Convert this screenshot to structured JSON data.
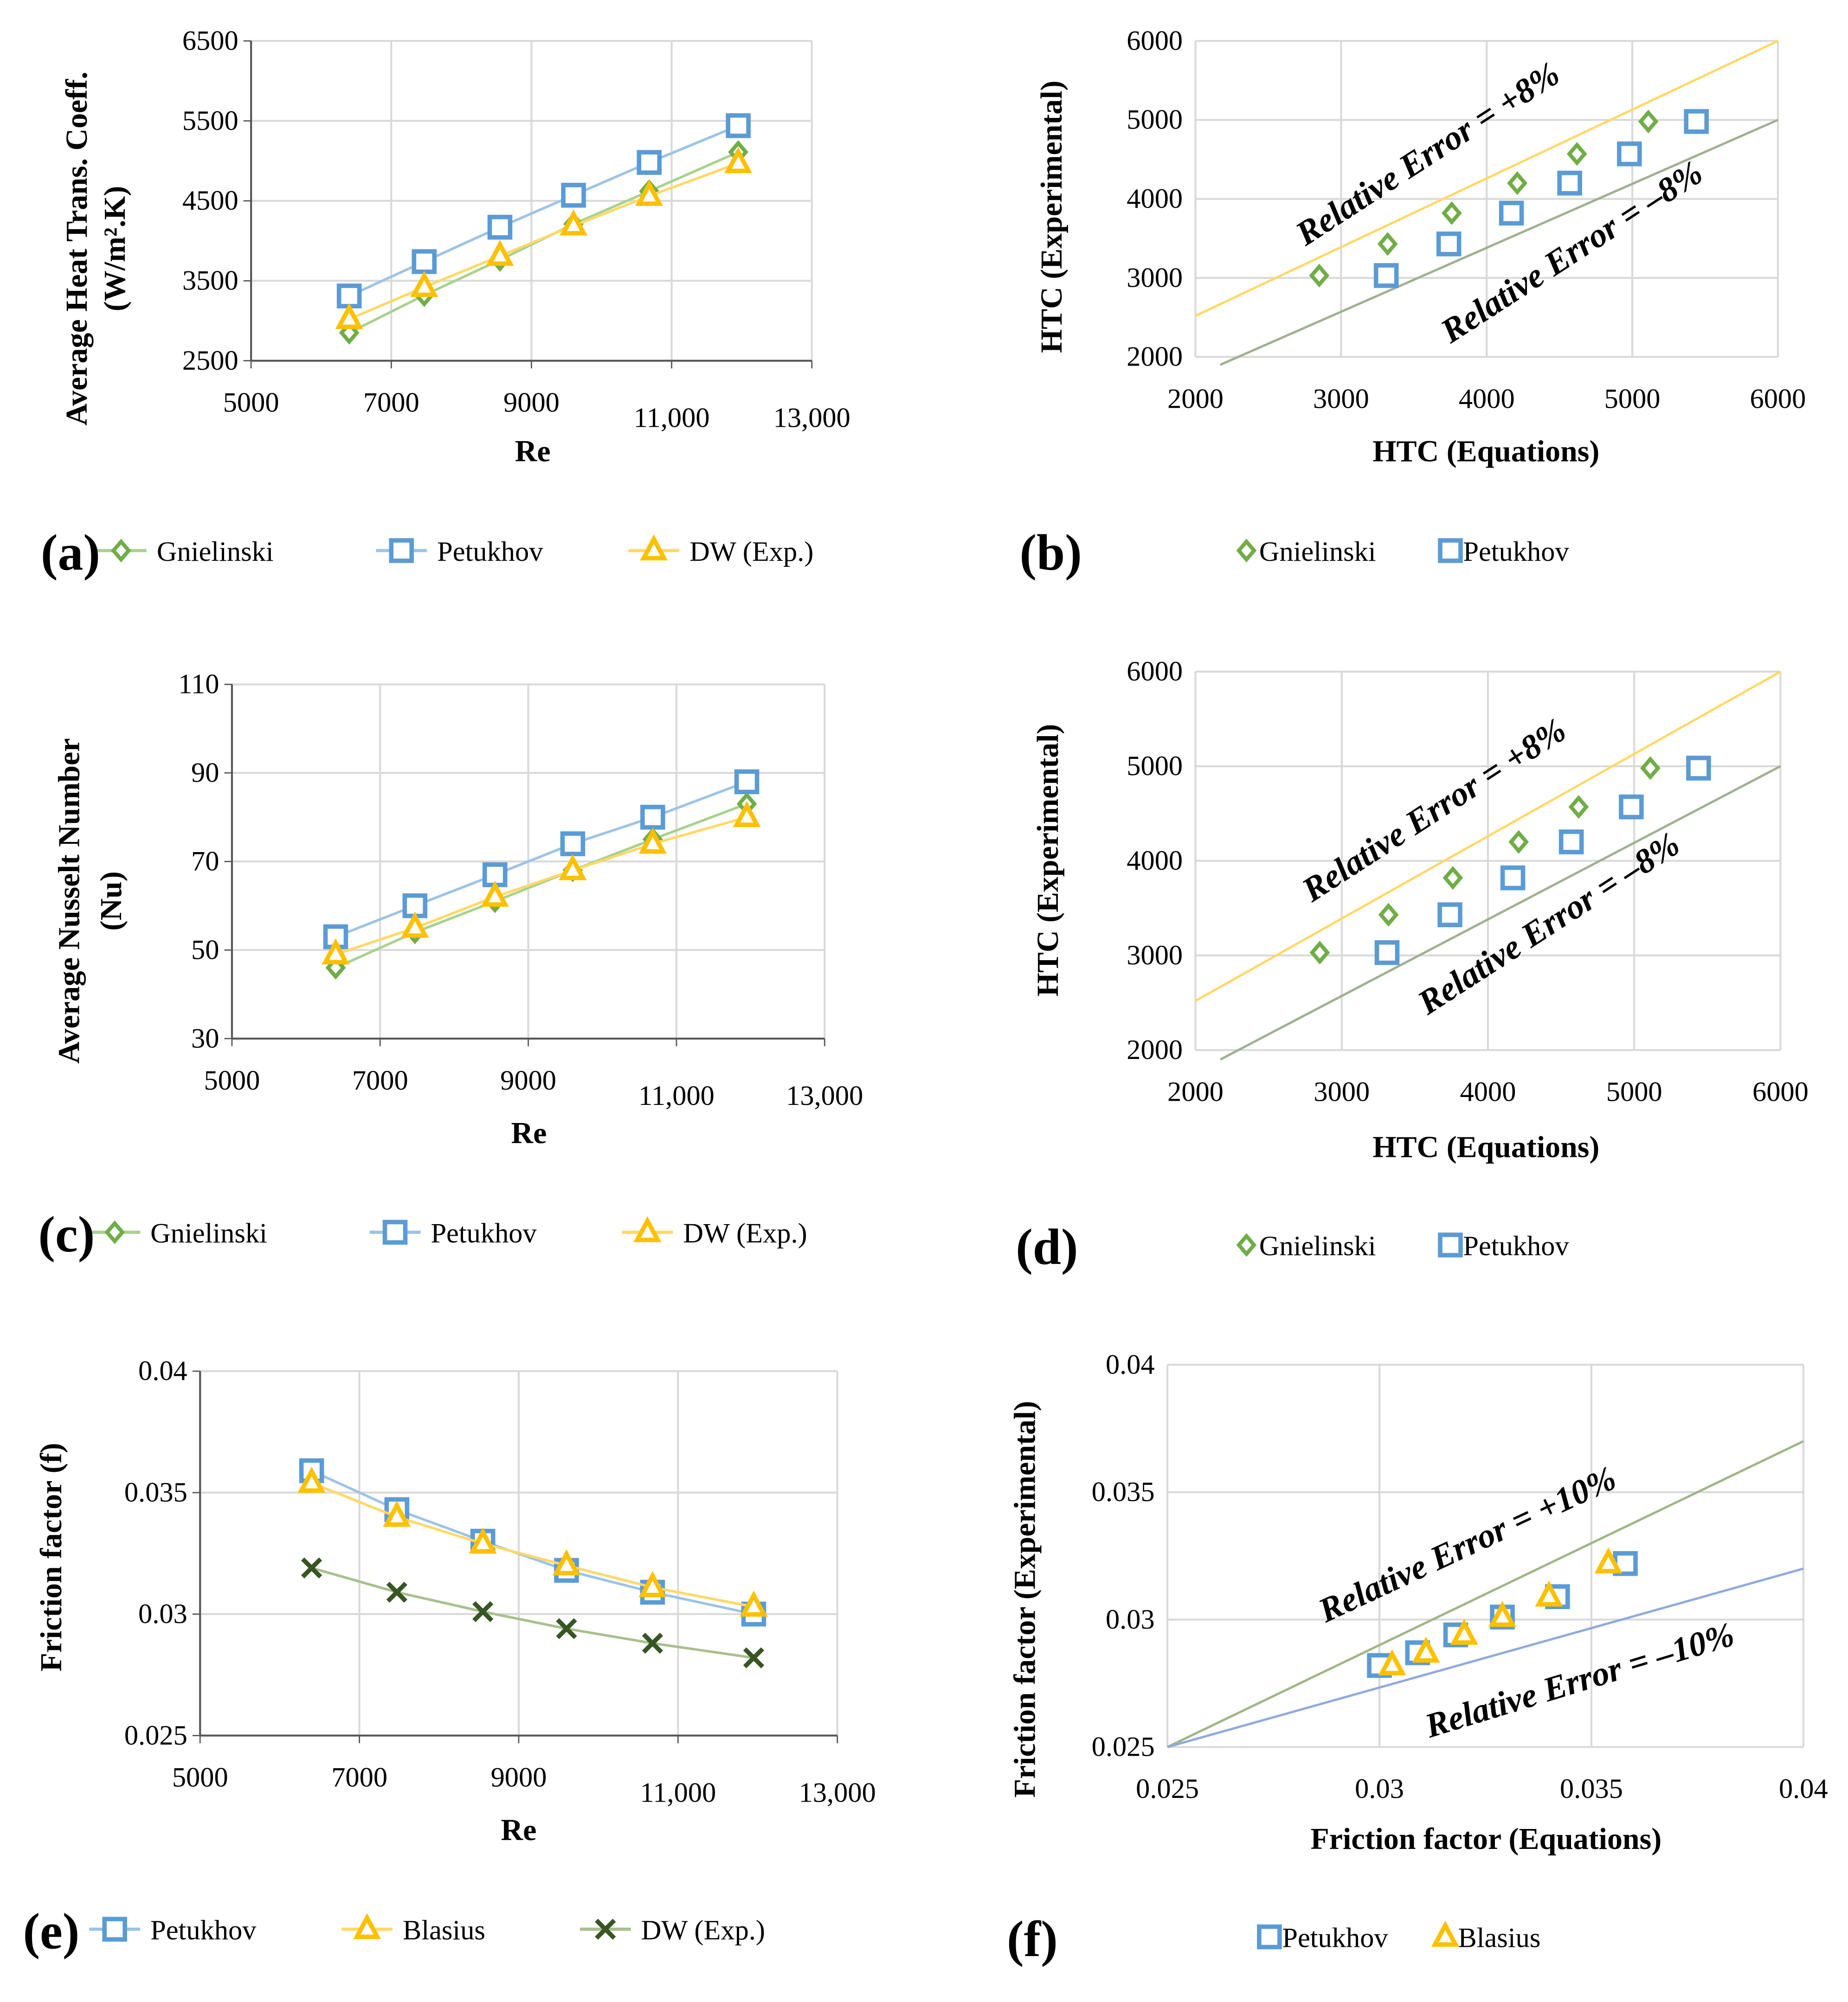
{
  "chart_data": [
    {
      "panel_label": "(a)",
      "type": "line",
      "xlabel": "Re",
      "ylabel": [
        "Average Heat Trans. Coeff.",
        "(W/m².K)"
      ],
      "xlim": [
        5000,
        13000
      ],
      "ylim": [
        2500,
        6500
      ],
      "xticks": [
        5000,
        7000,
        9000,
        11000,
        13000
      ],
      "xtick_labels": [
        "5000",
        "7000",
        "9000",
        "11,000",
        "13,000"
      ],
      "yticks": [
        2500,
        3500,
        4500,
        5500,
        6500
      ],
      "ytick_labels": [
        "2500",
        "3500",
        "4500",
        "5500",
        "6500"
      ],
      "grid": true,
      "legend": "bottom",
      "x": [
        6400,
        7470,
        8550,
        9600,
        10680,
        11950
      ],
      "series": [
        {
          "name": "Gnielinski",
          "marker": "diamond",
          "color": "#70ad47",
          "line_color": "#a9d18e",
          "values": [
            2850,
            3320,
            3760,
            4210,
            4620,
            5110
          ]
        },
        {
          "name": "Petukhov",
          "marker": "square",
          "color": "#5b9bd5",
          "line_color": "#9dc3e6",
          "values": [
            3310,
            3740,
            4170,
            4570,
            4980,
            5440
          ]
        },
        {
          "name": "DW (Exp.)",
          "marker": "triangle",
          "color": "#ffc000",
          "line_color": "#ffd966",
          "values": [
            3020,
            3420,
            3810,
            4190,
            4560,
            4970
          ]
        }
      ]
    },
    {
      "panel_label": "(b)",
      "type": "scatter",
      "xlabel": "HTC (Equations)",
      "ylabel": [
        "HTC (Experimental)"
      ],
      "xlim": [
        2000,
        6000
      ],
      "ylim": [
        2000,
        6000
      ],
      "xticks": [
        2000,
        3000,
        4000,
        5000,
        6000
      ],
      "xtick_labels": [
        "2000",
        "3000",
        "4000",
        "5000",
        "6000"
      ],
      "yticks": [
        2000,
        3000,
        4000,
        5000,
        6000
      ],
      "ytick_labels": [
        "2000",
        "3000",
        "4000",
        "5000",
        "6000"
      ],
      "grid": true,
      "legend": "bottom",
      "series": [
        {
          "name": "Gnielinski",
          "marker": "diamond",
          "color": "#70ad47",
          "x": [
            2850,
            3320,
            3760,
            4210,
            4620,
            5110
          ],
          "y": [
            3030,
            3430,
            3820,
            4200,
            4570,
            4980
          ]
        },
        {
          "name": "Petukhov",
          "marker": "square",
          "color": "#5b9bd5",
          "x": [
            3310,
            3740,
            4170,
            4570,
            4980,
            5440
          ],
          "y": [
            3030,
            3430,
            3820,
            4200,
            4570,
            4980
          ]
        }
      ],
      "reference_lines": [
        {
          "label": "Relative Error = +8%",
          "color": "#ffd966",
          "from": [
            2000,
            2520
          ],
          "to": [
            6000,
            6000
          ]
        },
        {
          "label": "Relative Error = –8%",
          "color": "#9fb090",
          "from": [
            2170,
            1900
          ],
          "to": [
            6000,
            5000
          ]
        }
      ]
    },
    {
      "panel_label": "(c)",
      "type": "line",
      "xlabel": "Re",
      "ylabel": [
        "Average Nusselt Number",
        "(Nu)"
      ],
      "xlim": [
        5000,
        13000
      ],
      "ylim": [
        30,
        110
      ],
      "xticks": [
        5000,
        7000,
        9000,
        11000,
        13000
      ],
      "xtick_labels": [
        "5000",
        "7000",
        "9000",
        "11,000",
        "13,000"
      ],
      "yticks": [
        30,
        50,
        70,
        90,
        110
      ],
      "ytick_labels": [
        "30",
        "50",
        "70",
        "90",
        "110"
      ],
      "grid": true,
      "legend": "bottom",
      "x": [
        6400,
        7470,
        8550,
        9600,
        10680,
        11950
      ],
      "series": [
        {
          "name": "Gnielinski",
          "marker": "diamond",
          "color": "#70ad47",
          "line_color": "#a9d18e",
          "values": [
            46,
            54,
            61,
            68,
            75,
            83
          ]
        },
        {
          "name": "Petukhov",
          "marker": "square",
          "color": "#5b9bd5",
          "line_color": "#9dc3e6",
          "values": [
            53,
            60,
            67,
            74,
            80,
            88
          ]
        },
        {
          "name": "DW (Exp.)",
          "marker": "triangle",
          "color": "#ffc000",
          "line_color": "#ffd966",
          "values": [
            49,
            55,
            62,
            68,
            74,
            80
          ]
        }
      ]
    },
    {
      "panel_label": "(d)",
      "type": "scatter",
      "xlabel": "HTC (Equations)",
      "ylabel": [
        "HTC (Experimental)"
      ],
      "xlim": [
        2000,
        6000
      ],
      "ylim": [
        2000,
        6000
      ],
      "xticks": [
        2000,
        3000,
        4000,
        5000,
        6000
      ],
      "xtick_labels": [
        "2000",
        "3000",
        "4000",
        "5000",
        "6000"
      ],
      "yticks": [
        2000,
        3000,
        4000,
        5000,
        6000
      ],
      "ytick_labels": [
        "2000",
        "3000",
        "4000",
        "5000",
        "6000"
      ],
      "grid": true,
      "legend": "bottom",
      "series": [
        {
          "name": "Gnielinski",
          "marker": "diamond",
          "color": "#70ad47",
          "x": [
            2850,
            3320,
            3760,
            4210,
            4620,
            5110
          ],
          "y": [
            3030,
            3430,
            3820,
            4200,
            4570,
            4980
          ]
        },
        {
          "name": "Petukhov",
          "marker": "square",
          "color": "#5b9bd5",
          "x": [
            3310,
            3740,
            4170,
            4570,
            4980,
            5440
          ],
          "y": [
            3030,
            3430,
            3820,
            4200,
            4570,
            4980
          ]
        }
      ],
      "reference_lines": [
        {
          "label": "Relative Error = +8%",
          "color": "#ffd966",
          "from": [
            2000,
            2520
          ],
          "to": [
            6000,
            6000
          ]
        },
        {
          "label": "Relative Error = –8%",
          "color": "#9fb090",
          "from": [
            2170,
            1900
          ],
          "to": [
            6000,
            5000
          ]
        }
      ]
    },
    {
      "panel_label": "(e)",
      "type": "line",
      "xlabel": "Re",
      "ylabel": [
        "Friction factor (f)"
      ],
      "xlim": [
        5000,
        13000
      ],
      "ylim": [
        0.025,
        0.04
      ],
      "xticks": [
        5000,
        7000,
        9000,
        11000,
        13000
      ],
      "xtick_labels": [
        "5000",
        "7000",
        "9000",
        "11,000",
        "13,000"
      ],
      "yticks": [
        0.025,
        0.03,
        0.035,
        0.04
      ],
      "ytick_labels": [
        "0.025",
        "0.03",
        "0.035",
        "0.04"
      ],
      "grid": true,
      "legend": "bottom",
      "x": [
        6400,
        7470,
        8550,
        9600,
        10680,
        11950
      ],
      "series": [
        {
          "name": "Petukhov",
          "marker": "square",
          "color": "#5b9bd5",
          "line_color": "#9dc3e6",
          "values": [
            0.0359,
            0.0343,
            0.033,
            0.0318,
            0.0309,
            0.03
          ]
        },
        {
          "name": "Blasius",
          "marker": "triangle",
          "color": "#ffc000",
          "line_color": "#ffd966",
          "values": [
            0.0354,
            0.034,
            0.0329,
            0.032,
            0.0311,
            0.0303
          ]
        },
        {
          "name": "DW (Exp.)",
          "marker": "x",
          "color": "#375623",
          "line_color": "#a9c08f",
          "values": [
            0.0319,
            0.0309,
            0.0301,
            0.0294,
            0.0288,
            0.0282
          ]
        }
      ]
    },
    {
      "panel_label": "(f)",
      "type": "scatter",
      "xlabel": "Friction factor (Equations)",
      "ylabel": [
        "Friction factor (Experimental)"
      ],
      "xlim": [
        0.025,
        0.04
      ],
      "ylim": [
        0.025,
        0.04
      ],
      "xticks": [
        0.025,
        0.03,
        0.035,
        0.04
      ],
      "xtick_labels": [
        "0.025",
        "0.03",
        "0.035",
        "0.04"
      ],
      "yticks": [
        0.025,
        0.03,
        0.035,
        0.04
      ],
      "ytick_labels": [
        "0.025",
        "0.03",
        "0.035",
        "0.04"
      ],
      "grid": true,
      "legend": "bottom",
      "series": [
        {
          "name": "Petukhov",
          "marker": "square",
          "color": "#5b9bd5",
          "x": [
            0.03,
            0.0309,
            0.0318,
            0.0329,
            0.0342,
            0.0358
          ],
          "y": [
            0.0282,
            0.0287,
            0.0294,
            0.0301,
            0.0309,
            0.0322
          ]
        },
        {
          "name": "Blasius",
          "marker": "triangle",
          "color": "#ffc000",
          "x": [
            0.0303,
            0.0311,
            0.032,
            0.0329,
            0.034,
            0.0354
          ],
          "y": [
            0.0282,
            0.0287,
            0.0294,
            0.0301,
            0.0309,
            0.0322
          ]
        }
      ],
      "reference_lines": [
        {
          "label": "Relative Error = +10%",
          "color": "#9fb586",
          "from": [
            0.025,
            0.025
          ],
          "to": [
            0.04,
            0.037
          ]
        },
        {
          "label": "Relative Error = –10%",
          "color": "#8faadc",
          "from": [
            0.025,
            0.025
          ],
          "to": [
            0.04,
            0.032
          ]
        }
      ]
    }
  ]
}
